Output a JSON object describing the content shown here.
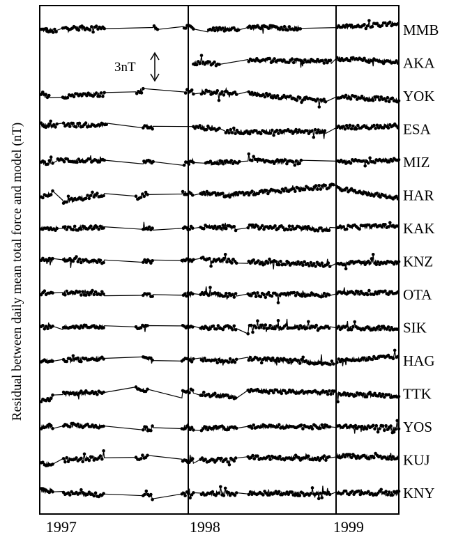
{
  "chart_data": {
    "type": "line",
    "ylabel": "Residual between daily mean total force and model (nT)",
    "xlabel": "",
    "x_ticks": [
      "1997",
      "1998",
      "1999"
    ],
    "x_range": [
      1996.83,
      1999.33
    ],
    "year_dividers": [
      1997.9,
      1998.9
    ],
    "scale_bar": {
      "label": "3nT",
      "value_nT": 3
    },
    "line_color": "#000000",
    "series": [
      {
        "name": "MMB",
        "baseline": 0,
        "segments": [
          [
            1996.84,
            1996.88,
            0.0,
            0.0
          ],
          [
            1996.88,
            1996.95,
            0.0,
            -0.2
          ],
          [
            1996.99,
            1997.28,
            0.2,
            0.25
          ],
          [
            1997.62,
            1997.65,
            0.3,
            0.25
          ],
          [
            1997.83,
            1997.9,
            0.3,
            0.3
          ],
          [
            1998.0,
            1998.22,
            0.0,
            0.15
          ],
          [
            1998.28,
            1998.65,
            0.3,
            0.2
          ],
          [
            1998.9,
            1999.33,
            0.3,
            0.8
          ]
        ]
      },
      {
        "name": "AKA",
        "baseline": 0,
        "segments": [
          [
            1997.9,
            1998.08,
            0.0,
            -0.1
          ],
          [
            1998.28,
            1998.86,
            0.4,
            0.2
          ],
          [
            1998.9,
            1999.33,
            0.5,
            0.1
          ]
        ]
      },
      {
        "name": "YOK",
        "baseline": 0,
        "segments": [
          [
            1996.84,
            1996.9,
            0.0,
            0.0
          ],
          [
            1996.99,
            1997.28,
            0.0,
            0.2
          ],
          [
            1997.5,
            1997.55,
            0.5,
            0.8
          ],
          [
            1997.84,
            1997.9,
            0.6,
            0.5
          ],
          [
            1997.95,
            1998.2,
            0.5,
            0.3
          ],
          [
            1998.28,
            1998.82,
            0.3,
            -0.6
          ],
          [
            1998.9,
            1999.33,
            0.0,
            -0.5
          ]
        ]
      },
      {
        "name": "ESA",
        "baseline": 0,
        "segments": [
          [
            1996.84,
            1996.95,
            0.5,
            0.4
          ],
          [
            1996.99,
            1997.3,
            0.5,
            0.5
          ],
          [
            1997.55,
            1997.62,
            0.4,
            0.2
          ],
          [
            1997.9,
            1998.08,
            0.3,
            0.0
          ],
          [
            1998.12,
            1998.82,
            -0.3,
            -0.3
          ],
          [
            1998.9,
            1999.33,
            0.2,
            0.4
          ]
        ]
      },
      {
        "name": "MIZ",
        "baseline": 0,
        "segments": [
          [
            1996.84,
            1996.92,
            0.0,
            0.0
          ],
          [
            1996.95,
            1997.28,
            0.3,
            0.1
          ],
          [
            1997.55,
            1997.62,
            0.0,
            0.0
          ],
          [
            1997.83,
            1997.9,
            -0.3,
            0.2
          ],
          [
            1997.98,
            1998.22,
            -0.1,
            0.0
          ],
          [
            1998.28,
            1998.65,
            0.2,
            0.0
          ],
          [
            1998.9,
            1999.33,
            0.0,
            0.3
          ]
        ]
      },
      {
        "name": "HAR",
        "baseline": 0,
        "segments": [
          [
            1996.84,
            1996.92,
            -0.2,
            0.3
          ],
          [
            1996.99,
            1997.28,
            -0.8,
            0.2
          ],
          [
            1997.5,
            1997.58,
            -0.3,
            0.2
          ],
          [
            1997.82,
            1997.9,
            0.3,
            0.2
          ],
          [
            1997.95,
            1998.12,
            0.3,
            0.0
          ],
          [
            1998.12,
            1998.88,
            0.0,
            1.1
          ],
          [
            1998.9,
            1999.33,
            0.8,
            -0.3
          ]
        ]
      },
      {
        "name": "KAK",
        "baseline": 0,
        "segments": [
          [
            1996.84,
            1996.95,
            0.0,
            0.0
          ],
          [
            1996.99,
            1997.28,
            0.0,
            0.1
          ],
          [
            1997.55,
            1997.62,
            0.0,
            0.0
          ],
          [
            1997.83,
            1997.9,
            0.0,
            0.2
          ],
          [
            1997.95,
            1998.2,
            0.2,
            0.1
          ],
          [
            1998.28,
            1998.85,
            0.2,
            -0.1
          ],
          [
            1998.9,
            1999.33,
            0.1,
            0.3
          ]
        ]
      },
      {
        "name": "KNZ",
        "baseline": 0,
        "segments": [
          [
            1996.84,
            1996.92,
            0.2,
            0.2
          ],
          [
            1996.99,
            1997.28,
            0.2,
            0.0
          ],
          [
            1997.55,
            1997.62,
            0.0,
            0.0
          ],
          [
            1997.82,
            1997.9,
            0.1,
            0.2
          ],
          [
            1997.95,
            1998.2,
            0.3,
            0.0
          ],
          [
            1998.28,
            1998.85,
            0.0,
            -0.4
          ],
          [
            1998.9,
            1999.33,
            -0.2,
            -0.1
          ]
        ]
      },
      {
        "name": "OTA",
        "baseline": 0,
        "segments": [
          [
            1996.84,
            1996.92,
            0.2,
            0.2
          ],
          [
            1996.99,
            1997.28,
            0.2,
            0.1
          ],
          [
            1997.55,
            1997.62,
            0.0,
            0.0
          ],
          [
            1997.83,
            1997.9,
            0.1,
            0.0
          ],
          [
            1997.95,
            1998.2,
            0.1,
            -0.1
          ],
          [
            1998.28,
            1998.85,
            0.0,
            0.0
          ],
          [
            1998.9,
            1999.33,
            0.3,
            0.2
          ]
        ]
      },
      {
        "name": "SIK",
        "baseline": 0,
        "segments": [
          [
            1996.84,
            1996.92,
            0.2,
            0.0
          ],
          [
            1996.99,
            1997.28,
            0.1,
            0.1
          ],
          [
            1997.5,
            1997.58,
            0.0,
            0.1
          ],
          [
            1997.82,
            1997.9,
            0.2,
            0.0
          ],
          [
            1997.95,
            1998.2,
            0.0,
            0.0
          ],
          [
            1998.28,
            1998.85,
            0.1,
            0.1
          ],
          [
            1998.9,
            1999.33,
            0.0,
            -0.1
          ]
        ]
      },
      {
        "name": "HAG",
        "baseline": 0,
        "segments": [
          [
            1996.84,
            1996.92,
            0.0,
            0.0
          ],
          [
            1996.99,
            1997.28,
            0.0,
            0.3
          ],
          [
            1997.55,
            1997.62,
            0.3,
            0.2
          ],
          [
            1997.82,
            1997.9,
            0.2,
            0.1
          ],
          [
            1997.95,
            1998.2,
            0.2,
            0.0
          ],
          [
            1998.28,
            1998.88,
            0.3,
            -0.3
          ],
          [
            1998.9,
            1999.33,
            0.0,
            0.5
          ]
        ]
      },
      {
        "name": "TTK",
        "baseline": 0,
        "segments": [
          [
            1996.84,
            1996.92,
            -0.8,
            -0.5
          ],
          [
            1996.99,
            1997.28,
            0.0,
            0.2
          ],
          [
            1997.5,
            1997.58,
            0.6,
            0.4
          ],
          [
            1997.82,
            1997.9,
            0.4,
            0.3
          ],
          [
            1997.95,
            1998.2,
            0.0,
            -0.4
          ],
          [
            1998.28,
            1998.88,
            0.4,
            0.1
          ],
          [
            1998.9,
            1999.33,
            0.0,
            -0.3
          ]
        ]
      },
      {
        "name": "YOS",
        "baseline": 0,
        "segments": [
          [
            1996.84,
            1996.92,
            0.0,
            0.0
          ],
          [
            1996.99,
            1997.28,
            0.2,
            0.1
          ],
          [
            1997.55,
            1997.62,
            -0.2,
            -0.2
          ],
          [
            1997.82,
            1997.9,
            -0.1,
            -0.2
          ],
          [
            1997.95,
            1998.2,
            -0.2,
            -0.1
          ],
          [
            1998.28,
            1998.85,
            0.1,
            0.0
          ],
          [
            1998.9,
            1999.33,
            0.0,
            -0.1
          ]
        ]
      },
      {
        "name": "KUJ",
        "baseline": 0,
        "segments": [
          [
            1996.84,
            1996.92,
            -0.5,
            -0.5
          ],
          [
            1996.99,
            1997.28,
            0.0,
            0.3
          ],
          [
            1997.5,
            1997.58,
            0.2,
            0.5
          ],
          [
            1997.82,
            1997.9,
            -0.1,
            0.0
          ],
          [
            1997.95,
            1998.2,
            0.0,
            0.0
          ],
          [
            1998.28,
            1998.85,
            0.3,
            0.2
          ],
          [
            1998.9,
            1999.33,
            0.5,
            0.3
          ]
        ]
      },
      {
        "name": "KNY",
        "baseline": 0,
        "segments": [
          [
            1996.84,
            1996.92,
            0.3,
            0.3
          ],
          [
            1996.99,
            1997.28,
            0.0,
            -0.2
          ],
          [
            1997.55,
            1997.62,
            -0.3,
            -0.2
          ],
          [
            1997.82,
            1997.9,
            -0.1,
            0.0
          ],
          [
            1997.95,
            1998.2,
            0.0,
            -0.1
          ],
          [
            1998.28,
            1998.85,
            0.0,
            -0.1
          ],
          [
            1998.9,
            1999.33,
            0.0,
            0.0
          ]
        ]
      }
    ]
  }
}
